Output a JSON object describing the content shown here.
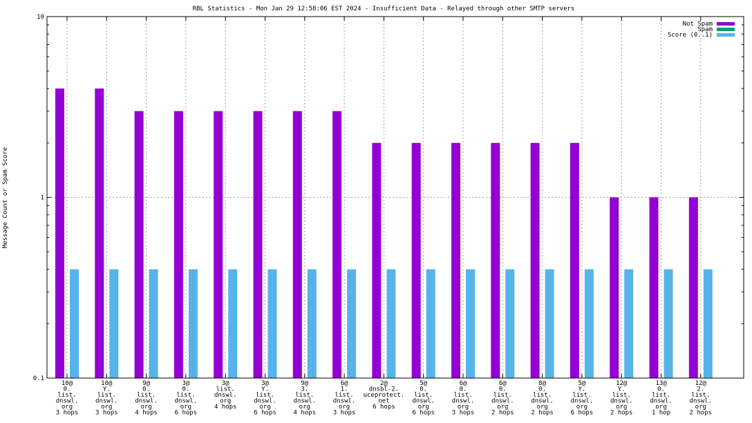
{
  "chart_data": {
    "type": "bar",
    "title": "RBL Statistics - Mon Jan 29 12:58:06 EST 2024 - Insufficient Data - Relayed through other SMTP servers",
    "ylabel": "Message Count or Spam Score",
    "xlabel": "",
    "yscale": "log",
    "ylim": [
      0.1,
      10
    ],
    "yticks": [
      "0.1",
      "1",
      "10"
    ],
    "grid": true,
    "legend_position": "top-right",
    "categories": [
      [
        "10@",
        "0.",
        "list.",
        "dnswl.",
        "org",
        "3 hops"
      ],
      [
        "10@",
        "Y.",
        "list.",
        "dnswl.",
        "org",
        "3 hops"
      ],
      [
        "9@",
        "0.",
        "list.",
        "dnswl.",
        "org",
        "4 hops"
      ],
      [
        "3@",
        "0.",
        "list.",
        "dnswl.",
        "org",
        "6 hops"
      ],
      [
        "3@",
        "list.",
        "dnswl.",
        "org",
        "4 hops"
      ],
      [
        "3@",
        "Y.",
        "list.",
        "dnswl.",
        "org",
        "6 hops"
      ],
      [
        "9@",
        "3.",
        "list.",
        "dnswl.",
        "org",
        "4 hops"
      ],
      [
        "6@",
        "1.",
        "list.",
        "dnswl.",
        "org",
        "3 hops"
      ],
      [
        "2@",
        "dnsbl-2.",
        "uceprotect.",
        "net",
        "6 hops"
      ],
      [
        "5@",
        "0.",
        "list.",
        "dnswl.",
        "org",
        "6 hops"
      ],
      [
        "6@",
        "0.",
        "list.",
        "dnswl.",
        "org",
        "3 hops"
      ],
      [
        "6@",
        "0.",
        "list.",
        "dnswl.",
        "org",
        "2 hops"
      ],
      [
        "8@",
        "0.",
        "list.",
        "dnswl.",
        "org",
        "2 hops"
      ],
      [
        "5@",
        "Y.",
        "list.",
        "dnswl.",
        "org",
        "6 hops"
      ],
      [
        "12@",
        "Y.",
        "list.",
        "dnswl.",
        "org",
        "2 hops"
      ],
      [
        "13@",
        "0.",
        "list.",
        "dnswl.",
        "org",
        "1 hop"
      ],
      [
        "12@",
        "2.",
        "list.",
        "dnswl.",
        "org",
        "2 hops"
      ]
    ],
    "series": [
      {
        "name": "Not Spam",
        "color": "#9400d3",
        "values": [
          4,
          4,
          3,
          3,
          3,
          3,
          3,
          3,
          2,
          2,
          2,
          2,
          2,
          2,
          1,
          1,
          1
        ]
      },
      {
        "name": "Spam",
        "color": "#009e73",
        "values": [
          0,
          0,
          0,
          0,
          0,
          0,
          0,
          0,
          0,
          0,
          0,
          0,
          0,
          0,
          0,
          0,
          0
        ]
      },
      {
        "name": "Score (0..1)",
        "color": "#56b4e9",
        "values": [
          0.4,
          0.4,
          0.4,
          0.4,
          0.4,
          0.4,
          0.4,
          0.4,
          0.4,
          0.4,
          0.4,
          0.4,
          0.4,
          0.4,
          0.4,
          0.4,
          0.4
        ]
      }
    ]
  }
}
